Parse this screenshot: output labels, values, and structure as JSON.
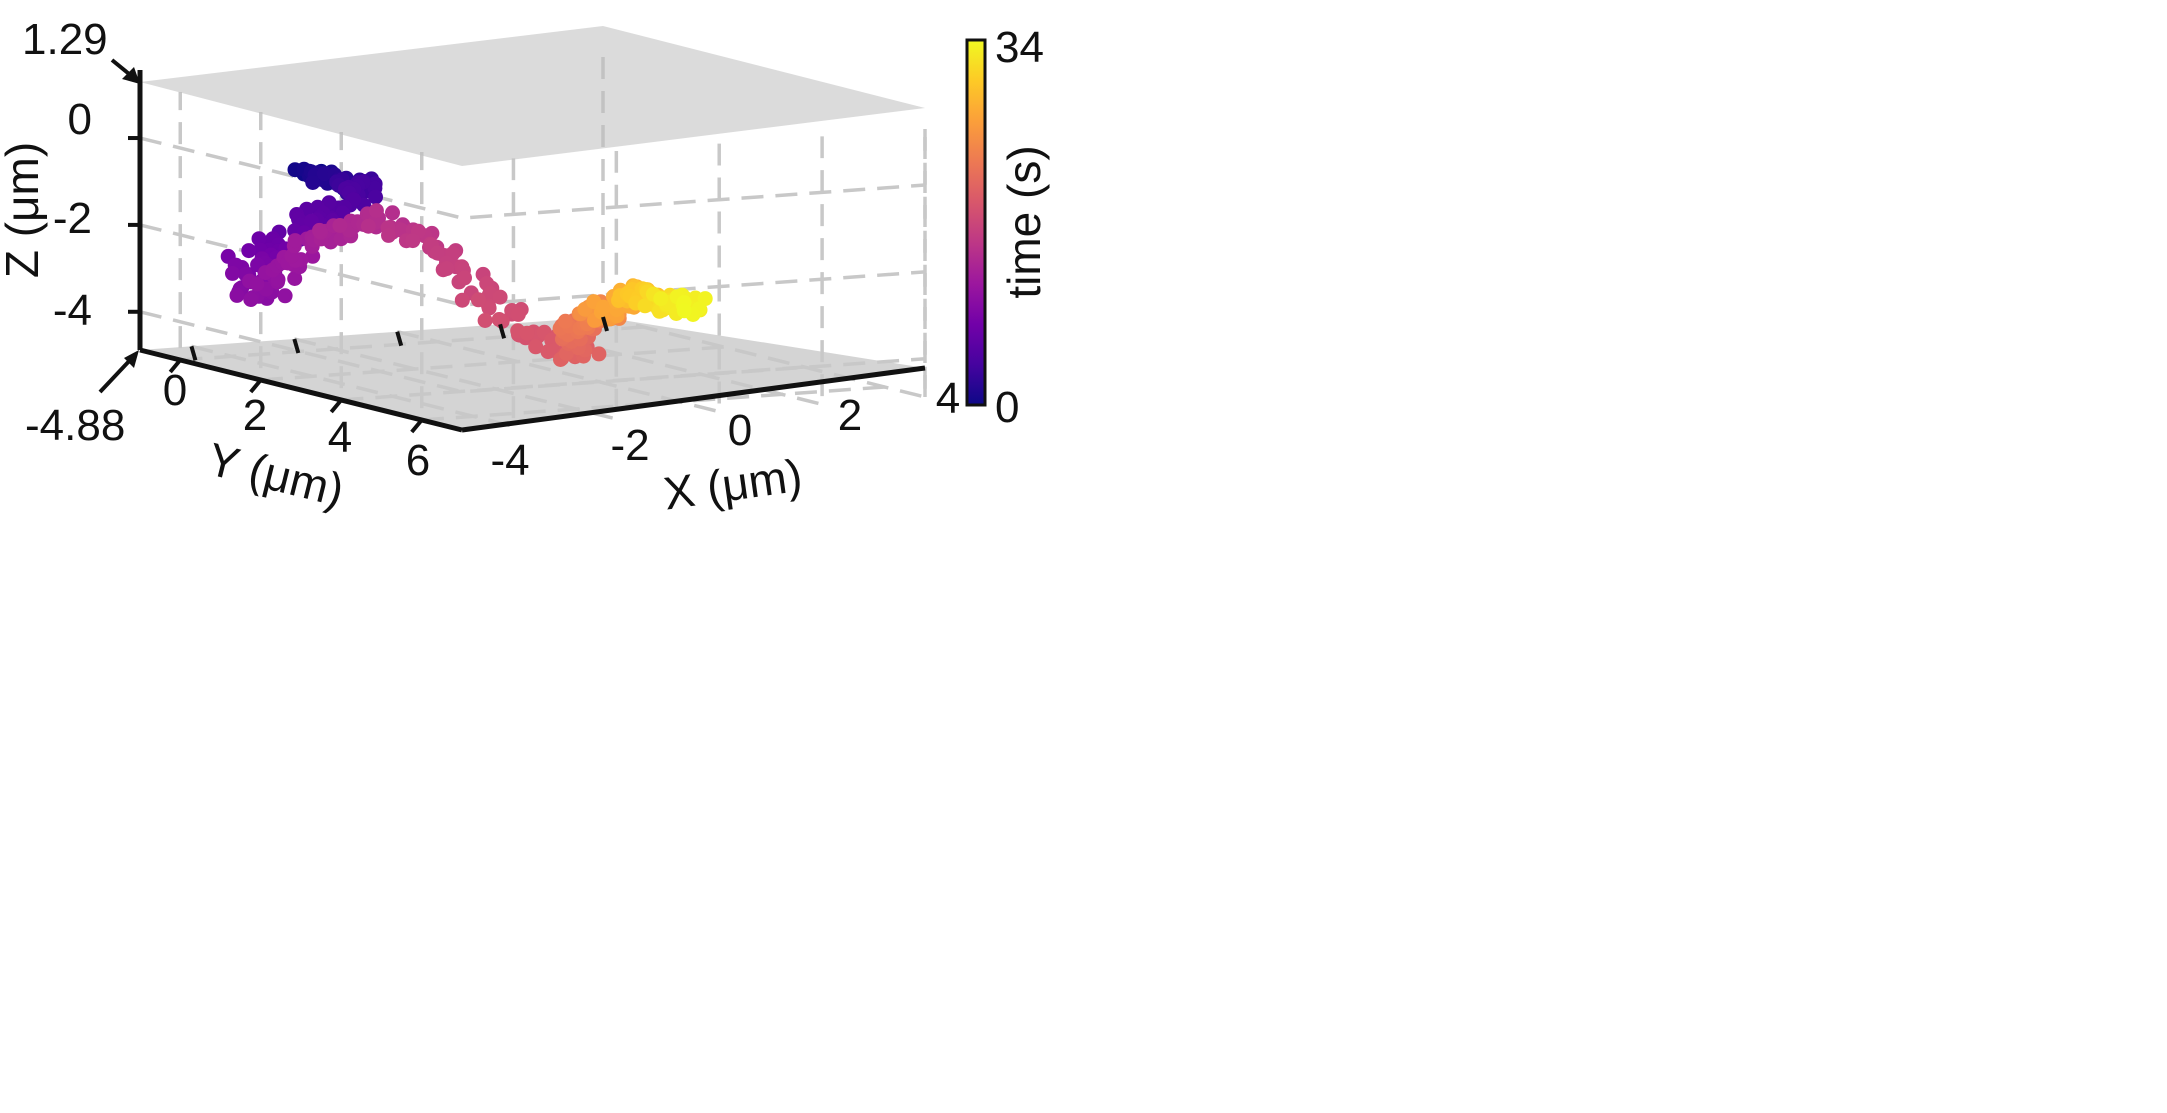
{
  "chart_data": {
    "type": "scatter",
    "title": "",
    "xlabel": "X (μm)",
    "ylabel": "Y (μm)",
    "zlabel": "Z (μm)",
    "xlim": [
      -5,
      4
    ],
    "ylim": [
      -1,
      7
    ],
    "zlim": [
      -4.88,
      1.29
    ],
    "x_ticks": [
      "-4",
      "-2",
      "0",
      "2",
      "4"
    ],
    "y_ticks": [
      "0",
      "2",
      "4",
      "6"
    ],
    "z_ticks": [
      "0",
      "-2",
      "-4"
    ],
    "z_plane_labels": {
      "top": "1.29",
      "bottom": "-4.88"
    },
    "planes": [
      1.29,
      -4.88
    ],
    "grid": true,
    "colorbar": {
      "label": "time (s)",
      "min": "0",
      "max": "34",
      "colormap": "plasma"
    },
    "colormap_stops": [
      "#0d0887",
      "#46039f",
      "#7201a8",
      "#9c179e",
      "#bd3786",
      "#d8576b",
      "#ed7953",
      "#fb9f3a",
      "#fdca26",
      "#f0f921"
    ],
    "trajectory_waypoints": {
      "time": [
        0,
        2,
        4,
        6,
        8,
        10,
        12,
        14,
        16,
        18,
        20,
        22,
        24,
        26,
        28,
        30,
        32,
        34
      ],
      "x": [
        -4.2,
        -3.8,
        -3.6,
        -4.0,
        -4.1,
        -3.6,
        -2.8,
        -2.0,
        -1.6,
        -1.2,
        -0.4,
        -0.5,
        0.2,
        0.4,
        1.0,
        1.4,
        2.0,
        2.6
      ],
      "y": [
        2.0,
        2.4,
        3.0,
        1.8,
        0.6,
        0.2,
        0.4,
        1.0,
        2.2,
        3.4,
        4.2,
        4.0,
        3.8,
        3.5,
        3.6,
        3.3,
        3.2,
        3.0
      ],
      "z": [
        -0.2,
        -0.3,
        -0.4,
        -1.4,
        -2.6,
        -3.5,
        -2.2,
        -1.6,
        -2.3,
        -3.6,
        -4.2,
        -3.6,
        -3.3,
        -3.5,
        -3.0,
        -3.2,
        -3.4,
        -3.6
      ]
    }
  }
}
